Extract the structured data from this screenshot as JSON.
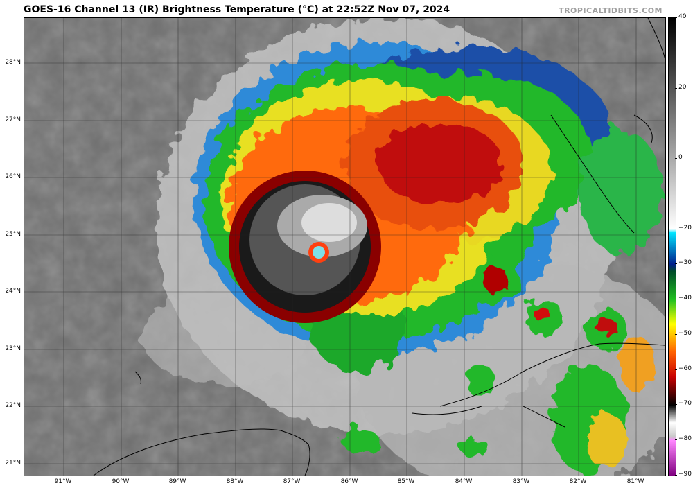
{
  "header": {
    "title": "GOES-16 Channel 13 (IR) Brightness Temperature (°C) at 22:52Z Nov 07, 2024",
    "credit": "TROPICALTIDBITS.COM"
  },
  "map": {
    "lat_labels": [
      "28°N",
      "27°N",
      "26°N",
      "25°N",
      "24°N",
      "23°N",
      "22°N",
      "21°N"
    ],
    "lon_labels": [
      "91°W",
      "90°W",
      "89°W",
      "88°W",
      "87°W",
      "86°W",
      "85°W",
      "84°W",
      "83°W",
      "82°W",
      "81°W"
    ],
    "storm_eye": {
      "lat": 24.7,
      "lon": -86.5
    }
  },
  "colorbar": {
    "labels": [
      "40",
      "20",
      "0",
      "−20",
      "−30",
      "−40",
      "−50",
      "−60",
      "−70",
      "−80",
      "−90"
    ],
    "values": [
      40,
      20,
      0,
      -20,
      -30,
      -40,
      -50,
      -60,
      -70,
      -80,
      -90
    ],
    "range": [
      -90,
      40
    ],
    "stops": [
      {
        "v": 40,
        "c": "#000000"
      },
      {
        "v": -20,
        "c": "#ffffff"
      },
      {
        "v": -21,
        "c": "#00e5ff"
      },
      {
        "v": -30,
        "c": "#001e8c"
      },
      {
        "v": -32,
        "c": "#004c2a"
      },
      {
        "v": -40,
        "c": "#20c020"
      },
      {
        "v": -47,
        "c": "#ffff00"
      },
      {
        "v": -55,
        "c": "#ff6000"
      },
      {
        "v": -62,
        "c": "#c80000"
      },
      {
        "v": -70,
        "c": "#000000"
      },
      {
        "v": -75,
        "c": "#ffffff"
      },
      {
        "v": -79,
        "c": "#c8c8c8"
      },
      {
        "v": -80,
        "c": "#ff88ff"
      },
      {
        "v": -90,
        "c": "#800080"
      }
    ]
  }
}
